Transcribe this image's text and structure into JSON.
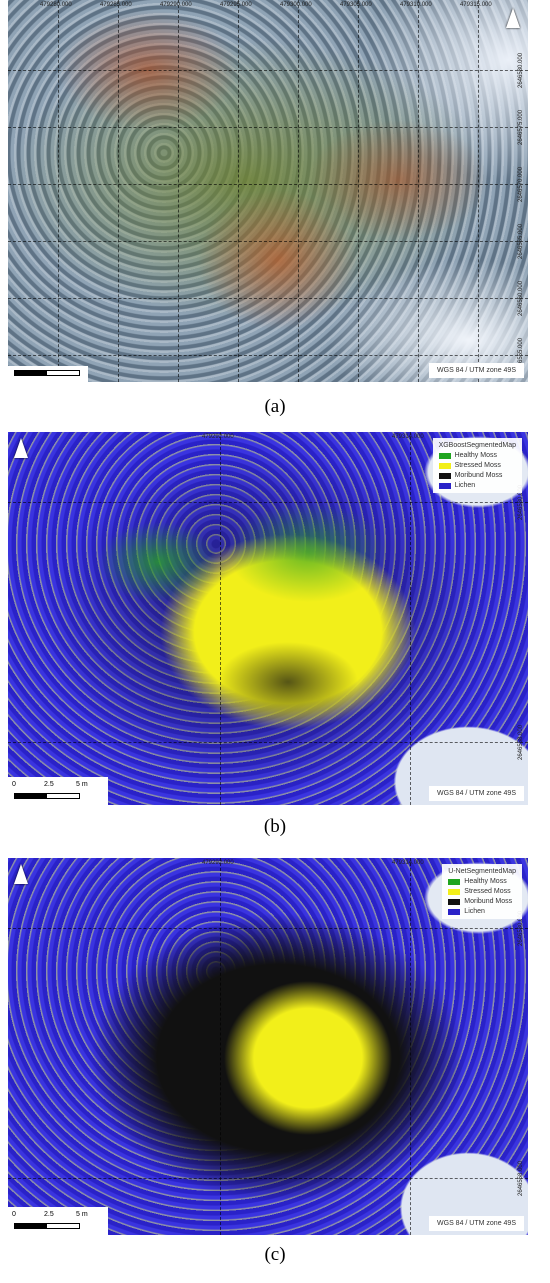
{
  "panels": [
    {
      "caption": "(a)",
      "top_labels": [
        "479280.000",
        "479285.000",
        "479290.000",
        "479295.000",
        "479300.000",
        "479305.000",
        "479310.000",
        "479315.000"
      ],
      "right_labels": [
        "2646580.000",
        "2646575.000",
        "2646570.000",
        "2646565.000",
        "2646560.000",
        "2646555.000"
      ],
      "crs": "WGS 84 / UTM zone 49S"
    },
    {
      "caption": "(b)",
      "top_labels": [
        "479292.000",
        "479314.000"
      ],
      "right_labels": [
        "2646580.000",
        "2646558.000"
      ],
      "legend": {
        "title": "XGBoostSegmentedMap",
        "items": [
          {
            "name": "Healthy Moss",
            "color": "#1fa51f"
          },
          {
            "name": "Stressed Moss",
            "color": "#f2ef1a"
          },
          {
            "name": "Moribund Moss",
            "color": "#111111"
          },
          {
            "name": "Lichen",
            "color": "#2a22c8"
          }
        ]
      },
      "scale": [
        "0",
        "2.5",
        "5 m"
      ],
      "crs": "WGS 84 / UTM zone 49S"
    },
    {
      "caption": "(c)",
      "top_labels": [
        "479292.000",
        "479314.000"
      ],
      "right_labels": [
        "2646580.000",
        "2646558.000"
      ],
      "legend": {
        "title": "U-NetSegmentedMap",
        "items": [
          {
            "name": "Healthy Moss",
            "color": "#1fa51f"
          },
          {
            "name": "Stressed Moss",
            "color": "#f2ef1a"
          },
          {
            "name": "Moribund Moss",
            "color": "#111111"
          },
          {
            "name": "Lichen",
            "color": "#2a22c8"
          }
        ]
      },
      "scale": [
        "0",
        "2.5",
        "5 m"
      ],
      "crs": "WGS 84 / UTM zone 49S"
    }
  ]
}
